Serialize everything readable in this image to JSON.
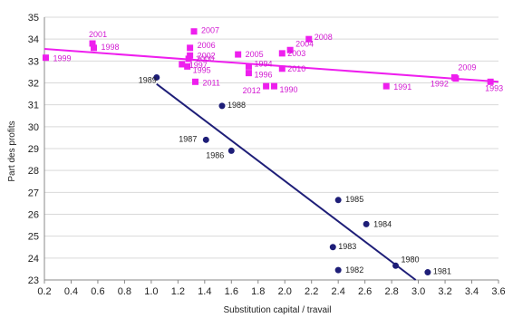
{
  "chart_data": {
    "type": "scatter",
    "xlabel": "Substitution capital / travail",
    "ylabel": "Part des profits",
    "xlim": [
      0.2,
      3.6
    ],
    "ylim": [
      23,
      35
    ],
    "x_ticks": [
      "0.2",
      "0.4",
      "0.6",
      "0.8",
      "1.0",
      "1.2",
      "1.4",
      "1.6",
      "1.8",
      "2.0",
      "2.2",
      "2.4",
      "2.6",
      "2.8",
      "3.0",
      "3.2",
      "3.4",
      "3.6"
    ],
    "y_ticks": [
      "23",
      "24",
      "25",
      "26",
      "27",
      "28",
      "29",
      "30",
      "31",
      "32",
      "33",
      "34",
      "35"
    ],
    "grid": "horizontal",
    "colors": {
      "series_1": "#1e1e78",
      "series_2": "#ee1fee",
      "grid": "#d9d9d9",
      "axis": "#888888"
    },
    "series": [
      {
        "points": [
          {
            "label": "1980",
            "x": 2.83,
            "y": 23.65
          },
          {
            "label": "1981",
            "x": 3.07,
            "y": 23.35
          },
          {
            "label": "1982",
            "x": 2.4,
            "y": 23.45
          },
          {
            "label": "1983",
            "x": 2.36,
            "y": 24.5
          },
          {
            "label": "1984",
            "x": 2.61,
            "y": 25.55
          },
          {
            "label": "1985",
            "x": 2.4,
            "y": 26.65
          },
          {
            "label": "1986",
            "x": 1.6,
            "y": 28.9
          },
          {
            "label": "1987",
            "x": 1.41,
            "y": 29.4
          },
          {
            "label": "1988",
            "x": 1.53,
            "y": 30.95
          },
          {
            "label": "1989",
            "x": 1.04,
            "y": 32.25
          }
        ],
        "trend": {
          "x1": 1.04,
          "y1": 31.95,
          "x2": 2.98,
          "y2": 23.0
        }
      },
      {
        "points": [
          {
            "label": "1990",
            "x": 1.92,
            "y": 31.85
          },
          {
            "label": "1991",
            "x": 2.76,
            "y": 31.85
          },
          {
            "label": "1992",
            "x": 3.28,
            "y": 32.2
          },
          {
            "label": "1993",
            "x": 3.54,
            "y": 32.05
          },
          {
            "label": "1994",
            "x": 1.73,
            "y": 32.75
          },
          {
            "label": "1995",
            "x": 1.27,
            "y": 32.75
          },
          {
            "label": "1996",
            "x": 1.73,
            "y": 32.45
          },
          {
            "label": "1997",
            "x": 1.23,
            "y": 32.85
          },
          {
            "label": "1998",
            "x": 0.57,
            "y": 33.6
          },
          {
            "label": "1999",
            "x": 0.21,
            "y": 33.15
          },
          {
            "label": "2000",
            "x": 1.28,
            "y": 33.1
          },
          {
            "label": "2001",
            "x": 0.56,
            "y": 33.8
          },
          {
            "label": "2002",
            "x": 1.29,
            "y": 33.25
          },
          {
            "label": "2003",
            "x": 1.98,
            "y": 33.35
          },
          {
            "label": "2004",
            "x": 2.04,
            "y": 33.5
          },
          {
            "label": "2005",
            "x": 1.65,
            "y": 33.3
          },
          {
            "label": "2006",
            "x": 1.29,
            "y": 33.6
          },
          {
            "label": "2007",
            "x": 1.32,
            "y": 34.35
          },
          {
            "label": "2008",
            "x": 2.18,
            "y": 34.0
          },
          {
            "label": "2009",
            "x": 3.27,
            "y": 32.25
          },
          {
            "label": "2010",
            "x": 1.98,
            "y": 32.65
          },
          {
            "label": "2011",
            "x": 1.33,
            "y": 32.05
          },
          {
            "label": "2012",
            "x": 1.86,
            "y": 31.85
          }
        ],
        "trend": {
          "x1": 0.2,
          "y1": 33.55,
          "x2": 3.6,
          "y2": 32.05
        }
      }
    ]
  }
}
